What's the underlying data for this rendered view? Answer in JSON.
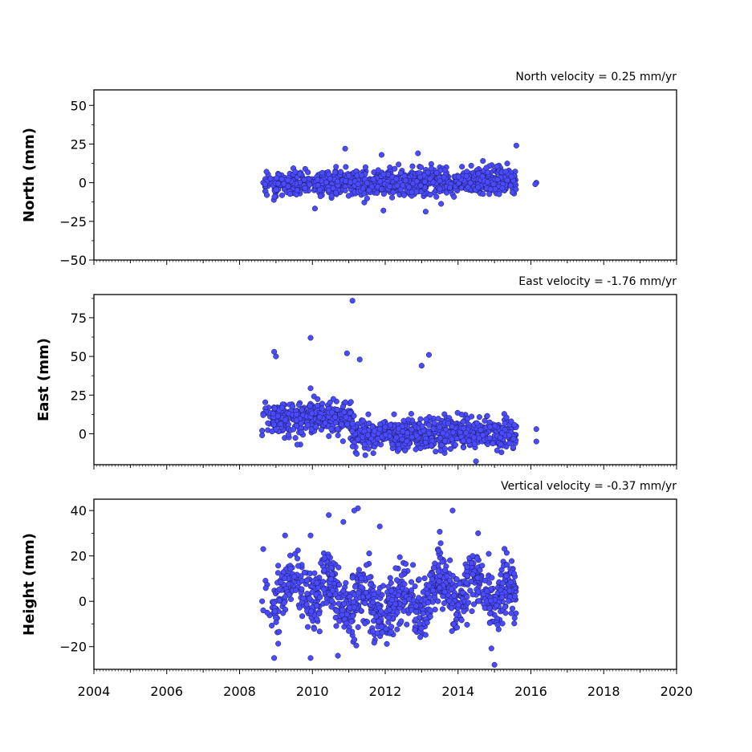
{
  "chart_data": {
    "type": "scatter",
    "x_axis": {
      "range": [
        2004,
        2020
      ],
      "tick_labels": [
        "2004",
        "2006",
        "2008",
        "2010",
        "2012",
        "2014",
        "2016",
        "2018",
        "2020"
      ],
      "shared": true
    },
    "marker_color": "#4a4aff",
    "marker_edge_color": "#1a1a55",
    "panels": [
      {
        "id": "north",
        "ylabel": "North (mm)",
        "annotation": "North velocity = 0.25 mm/yr",
        "ylim": [
          -50,
          60
        ],
        "yticks": [
          -50,
          -25,
          0,
          25,
          50
        ],
        "tick_labels": [
          "−50",
          "−25",
          "0",
          "25",
          "50"
        ],
        "data_span": [
          2008.7,
          2015.6
        ],
        "mean": 0,
        "sd": 5,
        "trend_per_year": 0.25,
        "outliers": [
          [
            2008.65,
            0
          ],
          [
            2008.7,
            -1
          ],
          [
            2008.75,
            -8
          ],
          [
            2010.9,
            22
          ],
          [
            2011.9,
            18
          ],
          [
            2012.9,
            19
          ],
          [
            2015.6,
            24
          ],
          [
            2016.15,
            0
          ],
          [
            2016.12,
            -1
          ],
          [
            2011.95,
            -18
          ]
        ]
      },
      {
        "id": "east",
        "ylabel": "East (mm)",
        "annotation": "East velocity = -1.76 mm/yr",
        "ylim": [
          -20,
          90
        ],
        "yticks": [
          0,
          25,
          50,
          75
        ],
        "tick_labels": [
          "0",
          "25",
          "50",
          "75"
        ],
        "data_span": [
          2008.7,
          2015.6
        ],
        "mean_before_2011": 10,
        "mean_after_2011": 0,
        "offset_epoch": 2011.1,
        "sd": 6,
        "outliers": [
          [
            2011.1,
            86
          ],
          [
            2009.95,
            62
          ],
          [
            2008.95,
            53
          ],
          [
            2009.0,
            50
          ],
          [
            2010.95,
            52
          ],
          [
            2011.3,
            48
          ],
          [
            2013.2,
            51
          ],
          [
            2013.0,
            44
          ],
          [
            2008.65,
            13
          ],
          [
            2008.65,
            12
          ],
          [
            2008.62,
            -1
          ],
          [
            2008.62,
            2
          ],
          [
            2016.15,
            3
          ],
          [
            2016.15,
            -5
          ]
        ]
      },
      {
        "id": "height",
        "ylabel": "Height (mm)",
        "annotation": "Vertical velocity = -0.37 mm/yr",
        "ylim": [
          -30,
          45
        ],
        "yticks": [
          -20,
          0,
          20,
          40
        ],
        "tick_labels": [
          "−20",
          "0",
          "20",
          "40"
        ],
        "data_span": [
          2008.7,
          2015.6
        ],
        "mean": 2,
        "sd": 8,
        "seasonal_amplitude": 6,
        "outliers": [
          [
            2011.25,
            41
          ],
          [
            2011.15,
            40
          ],
          [
            2013.85,
            40
          ],
          [
            2010.45,
            38
          ],
          [
            2010.85,
            35
          ],
          [
            2011.85,
            33
          ],
          [
            2014.55,
            30
          ],
          [
            2009.25,
            29
          ],
          [
            2009.95,
            29
          ],
          [
            2015.0,
            -28
          ],
          [
            2008.95,
            -25
          ],
          [
            2009.95,
            -25
          ],
          [
            2010.7,
            -24
          ],
          [
            2008.65,
            23
          ],
          [
            2008.62,
            0
          ],
          [
            2008.65,
            -4
          ]
        ]
      }
    ]
  }
}
